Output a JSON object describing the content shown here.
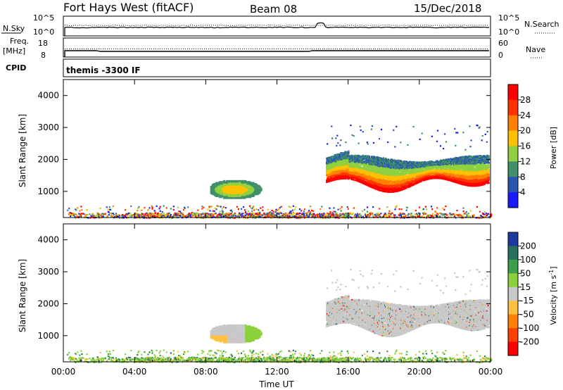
{
  "header": {
    "station": "Fort Hays West (fitACF)",
    "beam": "Beam 08",
    "date": "15/Dec/2018"
  },
  "noise_panel": {
    "left_label": "N.Sky",
    "left_ticks": [
      "10^5",
      "10^0"
    ],
    "right_ticks": [
      "10^5",
      "10^0"
    ],
    "right_label": "N.Search",
    "right_line_style": "dotted"
  },
  "freq_panel": {
    "left_label_1": "Freq.",
    "left_label_2": "[MHz]",
    "left_ticks": [
      "18",
      "8"
    ],
    "right_ticks": [
      "60",
      "0"
    ],
    "right_label": "Nave",
    "right_line_style": "dotted"
  },
  "cpid_panel": {
    "label": "CPID",
    "text": "themis -3300 IF"
  },
  "chart_data": [
    {
      "type": "heatmap",
      "name": "power",
      "ylabel": "Slant Range [km]",
      "ylim": [
        180,
        4500
      ],
      "yticks": [
        "1000",
        "2000",
        "3000",
        "4000"
      ],
      "xlim": [
        0,
        24
      ],
      "xticks": [
        "00:00",
        "04:00",
        "08:00",
        "12:00",
        "16:00",
        "20:00",
        "00:00"
      ],
      "colorbar": {
        "title": "Power [dB]",
        "labels": [
          "28",
          "24",
          "20",
          "16",
          "12",
          "8",
          "4"
        ],
        "colors": [
          "#ff0000",
          "#ff3300",
          "#ff8000",
          "#ffc000",
          "#8fd13f",
          "#3f8f6a",
          "#2a56b0",
          "#1a1aff"
        ]
      },
      "regions": [
        {
          "t0": 0.0,
          "t1": 24.0,
          "r0": 180,
          "r1": 560
        },
        {
          "t0": 8.2,
          "t1": 11.2,
          "r0": 760,
          "r1": 1360
        },
        {
          "t0": 14.7,
          "t1": 23.9,
          "r0": 1000,
          "r1": 2600
        }
      ]
    },
    {
      "type": "heatmap",
      "name": "velocity",
      "ylabel": "Slant Range [km]",
      "ylim": [
        180,
        4500
      ],
      "yticks": [
        "1000",
        "2000",
        "3000",
        "4000"
      ],
      "xlim": [
        0,
        24
      ],
      "xticks": [
        "00:00",
        "04:00",
        "08:00",
        "12:00",
        "16:00",
        "20:00",
        "00:00"
      ],
      "xlabel": "Time UT",
      "colorbar": {
        "title": "Velocity [m s^-1]",
        "labels": [
          "200",
          "100",
          "50",
          "15",
          "-15",
          "-50",
          "-100",
          "-200"
        ],
        "colors": [
          "#1a3aa0",
          "#2a7060",
          "#3ca04a",
          "#8ad03c",
          "#c8c8c8",
          "#ffc040",
          "#ff8000",
          "#ff4000",
          "#ff0000"
        ]
      },
      "regions": [
        {
          "t0": 0.0,
          "t1": 24.0,
          "r0": 180,
          "r1": 560
        },
        {
          "t0": 8.2,
          "t1": 11.2,
          "r0": 760,
          "r1": 1360
        },
        {
          "t0": 14.7,
          "t1": 23.9,
          "r0": 1000,
          "r1": 2600
        }
      ]
    }
  ]
}
